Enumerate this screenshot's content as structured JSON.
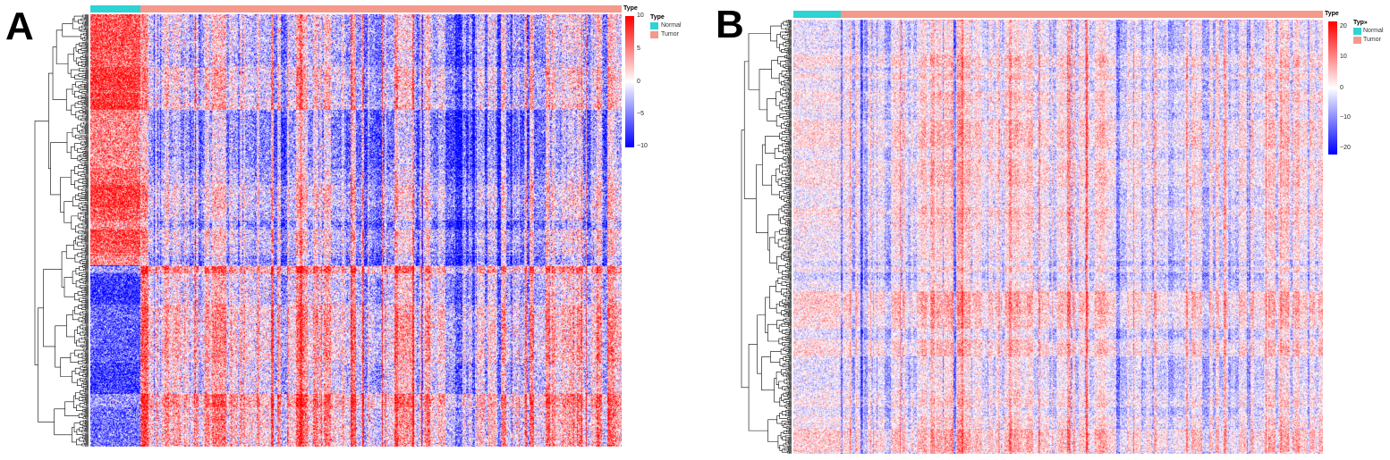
{
  "panels": [
    {
      "letter": "A",
      "annotation_title": "Type",
      "legend_title": "Type",
      "legend_items": [
        "Normal",
        "Tumor"
      ],
      "colorbar_ticks": [
        "10",
        "5",
        "0",
        "−5",
        "−10"
      ]
    },
    {
      "letter": "B",
      "annotation_title": "Type",
      "legend_title": "Typ»",
      "legend_items": [
        "Normal",
        "Tumor"
      ],
      "colorbar_ticks": [
        "20",
        "10",
        "0",
        "−10",
        "−20"
      ]
    }
  ],
  "colors": {
    "normal": "#2ed3d3",
    "tumor": "#f49a8c",
    "high": "#ff0000",
    "mid": "#ffffff",
    "low": "#0000ff"
  },
  "chart_data": [
    {
      "type": "heatmap",
      "title": "",
      "annotation": {
        "name": "Type",
        "groups": [
          {
            "name": "Normal",
            "fraction": 0.095
          },
          {
            "name": "Tumor",
            "fraction": 0.905
          }
        ]
      },
      "color_scale": {
        "min": -10,
        "max": 10,
        "ticks": [
          10,
          5,
          0,
          -5,
          -10
        ],
        "low": "#0000ff",
        "mid": "#ffffff",
        "high": "#ff0000"
      },
      "row_dendrogram": true,
      "row_blocks": [
        {
          "rows_fraction": 0.58,
          "normal_mean": 7,
          "tumor_mean": -1
        },
        {
          "rows_fraction": 0.42,
          "normal_mean": -7,
          "tumor_mean": 1
        }
      ]
    },
    {
      "type": "heatmap",
      "title": "",
      "annotation": {
        "name": "Type",
        "groups": [
          {
            "name": "Normal",
            "fraction": 0.09
          },
          {
            "name": "Tumor",
            "fraction": 0.91
          }
        ]
      },
      "color_scale": {
        "min": -20,
        "max": 20,
        "ticks": [
          20,
          10,
          0,
          -10,
          -20
        ],
        "low": "#0000ff",
        "mid": "#ffffff",
        "high": "#ff0000"
      },
      "row_dendrogram": true,
      "row_blocks": [
        {
          "rows_fraction": 1.0,
          "normal_mean": 0,
          "tumor_mean": 0
        }
      ]
    }
  ]
}
